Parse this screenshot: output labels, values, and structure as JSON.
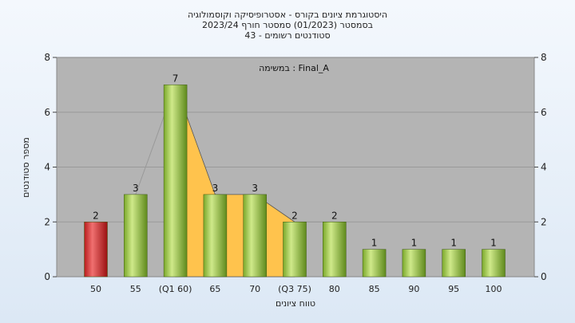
{
  "chart_data": {
    "type": "bar",
    "title_lines": [
      "היסטוגרמת ציונים בקורס - אסטרופיסיקה וקוסמולוגיה",
      "בסמסטר  (01/2023)  סמסטר חורף  2023/24",
      "סטודנטים רשומים - 43"
    ],
    "annotation": "במשימה : Final_A",
    "xlabel": "טווח ציונים",
    "ylabel": "מספר סטודנטים",
    "categories": [
      "50",
      "55",
      "(Q1 60)",
      "65",
      "70",
      "(Q3 75)",
      "80",
      "85",
      "90",
      "95",
      "100"
    ],
    "values": [
      2,
      3,
      7,
      3,
      3,
      2,
      2,
      1,
      1,
      1,
      1
    ],
    "highlight_index": 0,
    "iqr_area": {
      "from_index": 2,
      "to_index": 5
    },
    "ylim": [
      0,
      8
    ],
    "yticks": [
      0,
      2,
      4,
      6,
      8
    ],
    "grid": true,
    "colors": {
      "bar": "#8fbf3a",
      "bar_highlight": "#d42a2a",
      "iqr_fill": "#ffc34d",
      "plot_bg": "#b4b4b4"
    }
  }
}
